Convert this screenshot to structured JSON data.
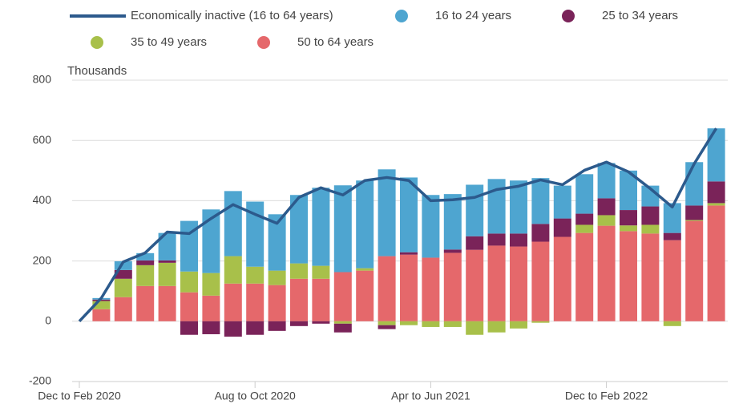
{
  "chart_data": {
    "type": "stacked-bar-line",
    "y_axis_label": "Thousands",
    "categories": [
      "Dec to Feb 2020",
      null,
      null,
      null,
      null,
      null,
      null,
      null,
      "Aug to Oct 2020",
      null,
      null,
      null,
      null,
      null,
      null,
      null,
      "Apr to Jun 2021",
      null,
      null,
      null,
      null,
      null,
      null,
      null,
      "Dec to Feb 2022",
      null,
      null,
      null,
      null,
      null
    ],
    "ylim": [
      -200,
      800
    ],
    "yticks": [
      -200,
      0,
      200,
      400,
      600,
      800
    ],
    "grid": true,
    "line": {
      "name": "Economically inactive (16 to 64 years)",
      "color": "#2c5a8c",
      "values": [
        0,
        77,
        197,
        227,
        296,
        291,
        341,
        387,
        355,
        325,
        411,
        443,
        419,
        467,
        477,
        467,
        400,
        403,
        411,
        437,
        448,
        469,
        453,
        501,
        528,
        496,
        440,
        379,
        523,
        640
      ]
    },
    "series": [
      {
        "name": "50 to 64 years",
        "color": "#e5686b",
        "values": [
          null,
          40,
          80,
          117,
          117,
          96,
          85,
          125,
          125,
          120,
          141,
          141,
          163,
          168,
          216,
          221,
          211,
          227,
          237,
          251,
          248,
          264,
          280,
          293,
          317,
          299,
          291,
          269,
          333,
          384
        ]
      },
      {
        "name": "35 to 49 years",
        "color": "#a8c04a",
        "values": [
          null,
          27,
          61,
          69,
          77,
          69,
          75,
          91,
          56,
          48,
          51,
          43,
          -8,
          8,
          -13,
          -13,
          -19,
          -19,
          -45,
          -37,
          -24,
          -5,
          0,
          27,
          35,
          19,
          29,
          -16,
          3,
          8
        ]
      },
      {
        "name": "25 to 34 years",
        "color": "#7a2359",
        "values": [
          null,
          5,
          29,
          16,
          8,
          -45,
          -43,
          -51,
          -45,
          -32,
          -16,
          -8,
          -29,
          0,
          -13,
          8,
          0,
          11,
          45,
          40,
          43,
          59,
          61,
          37,
          56,
          51,
          61,
          24,
          48,
          72
        ]
      },
      {
        "name": "16 to 24 years",
        "color": "#4ea5d0",
        "values": [
          null,
          5,
          29,
          24,
          91,
          168,
          211,
          216,
          216,
          187,
          227,
          259,
          288,
          291,
          288,
          248,
          208,
          184,
          171,
          181,
          176,
          152,
          109,
          131,
          117,
          131,
          69,
          99,
          144,
          176
        ]
      }
    ]
  }
}
